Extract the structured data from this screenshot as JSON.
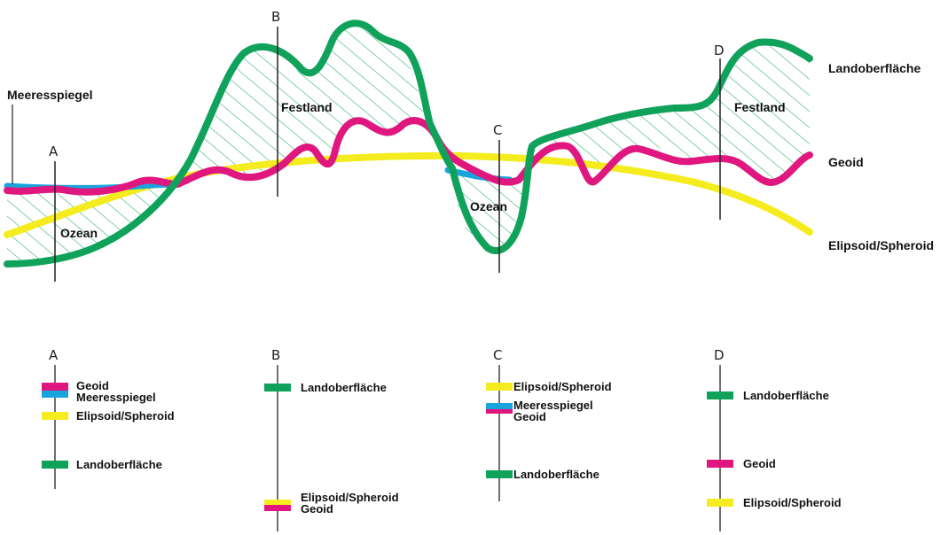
{
  "colors": {
    "landoberflaeche": "#10A25B",
    "geoid": "#E0177E",
    "ellipsoid": "#F4EC1E",
    "meeresspiegel": "#1AA4DD",
    "hatch": "#10A25B",
    "axis": "#222222"
  },
  "top": {
    "labels": {
      "meeresspiegel": "Meeresspiegel",
      "landoberflaeche": "Landoberfläche",
      "geoid": "Geoid",
      "ellipsoid": "Elipsoid/Spheroid",
      "festland_b": "Festland",
      "festland_d": "Festland",
      "ozean_a": "Ozean",
      "ozean_c": "Ozean"
    },
    "markers": [
      "A",
      "B",
      "C",
      "D"
    ]
  },
  "columns": [
    {
      "letter": "A",
      "items": [
        {
          "label": "Geoid",
          "color": "geoid"
        },
        {
          "label": "Meeresspiegel",
          "color": "meeresspiegel"
        },
        {
          "label": "Elipsoid/Spheroid",
          "color": "ellipsoid"
        },
        {
          "label": "Landoberfläche",
          "color": "landoberflaeche"
        }
      ]
    },
    {
      "letter": "B",
      "items": [
        {
          "label": "Landoberfläche",
          "color": "landoberflaeche"
        },
        {
          "label": "Elipsoid/Spheroid",
          "color": "ellipsoid"
        },
        {
          "label": "Geoid",
          "color": "geoid"
        }
      ]
    },
    {
      "letter": "C",
      "items": [
        {
          "label": "Elipsoid/Spheroid",
          "color": "ellipsoid"
        },
        {
          "label": "Meeresspiegel",
          "color": "meeresspiegel"
        },
        {
          "label": "Geoid",
          "color": "geoid"
        },
        {
          "label": "Landoberfläche",
          "color": "landoberflaeche"
        }
      ]
    },
    {
      "letter": "D",
      "items": [
        {
          "label": "Landoberfläche",
          "color": "landoberflaeche"
        },
        {
          "label": "Geoid",
          "color": "geoid"
        },
        {
          "label": "Elipsoid/Spheroid",
          "color": "ellipsoid"
        }
      ]
    }
  ]
}
